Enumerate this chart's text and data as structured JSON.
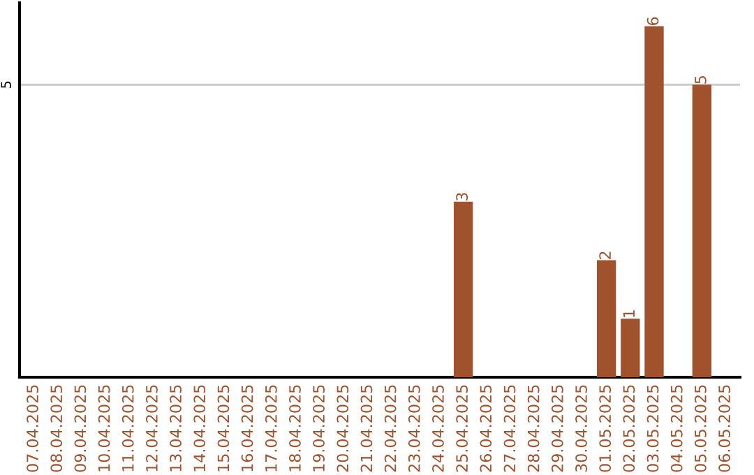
{
  "chart_data": {
    "type": "bar",
    "categories": [
      "07.04.2025",
      "08.04.2025",
      "09.04.2025",
      "10.04.2025",
      "11.04.2025",
      "12.04.2025",
      "13.04.2025",
      "14.04.2025",
      "15.04.2025",
      "16.04.2025",
      "17.04.2025",
      "18.04.2025",
      "19.04.2025",
      "20.04.2025",
      "21.04.2025",
      "22.04.2025",
      "23.04.2025",
      "24.04.2025",
      "25.04.2025",
      "26.04.2025",
      "27.04.2025",
      "28.04.2025",
      "29.04.2025",
      "30.04.2025",
      "01.05.2025",
      "02.05.2025",
      "03.05.2025",
      "04.05.2025",
      "05.05.2025",
      "06.05.2025"
    ],
    "values": [
      null,
      null,
      null,
      null,
      null,
      null,
      null,
      null,
      null,
      null,
      null,
      null,
      null,
      null,
      null,
      null,
      null,
      null,
      3,
      null,
      null,
      null,
      null,
      null,
      2,
      1,
      6,
      null,
      5,
      null
    ],
    "ylim": [
      0,
      6.4
    ],
    "value_labels": [
      null,
      null,
      null,
      null,
      null,
      null,
      null,
      null,
      null,
      null,
      null,
      null,
      null,
      null,
      null,
      null,
      null,
      null,
      "3",
      null,
      null,
      null,
      null,
      null,
      "2",
      "1",
      "6",
      null,
      "5",
      null
    ],
    "color": "#a0522d",
    "ref_lines": [
      {
        "axis": "y",
        "value": 5,
        "label": "5",
        "color": "#cccccc"
      }
    ]
  }
}
